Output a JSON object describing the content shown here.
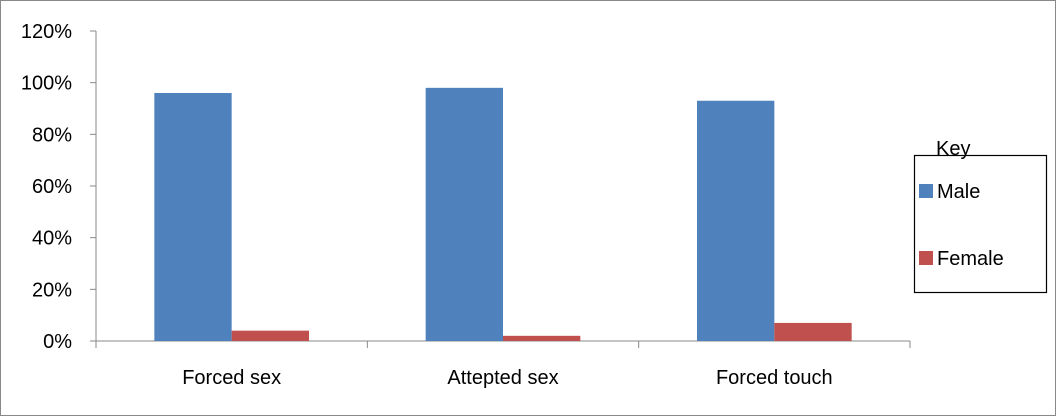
{
  "chart_data": {
    "type": "bar",
    "categories": [
      "Forced sex",
      "Attepted sex",
      "Forced touch"
    ],
    "series": [
      {
        "name": "Male",
        "values": [
          96,
          98,
          93
        ],
        "color": "#4F81BD"
      },
      {
        "name": "Female",
        "values": [
          4,
          2,
          7
        ],
        "color": "#C0504D"
      }
    ],
    "title": "",
    "xlabel": "",
    "ylabel": "",
    "ylim": [
      0,
      120
    ],
    "yticks": [
      0,
      20,
      40,
      60,
      80,
      100,
      120
    ],
    "ytick_labels": [
      "0%",
      "20%",
      "40%",
      "60%",
      "80%",
      "100%",
      "120%"
    ],
    "grid": false,
    "legend": {
      "title": "Key",
      "placement": "right"
    }
  }
}
